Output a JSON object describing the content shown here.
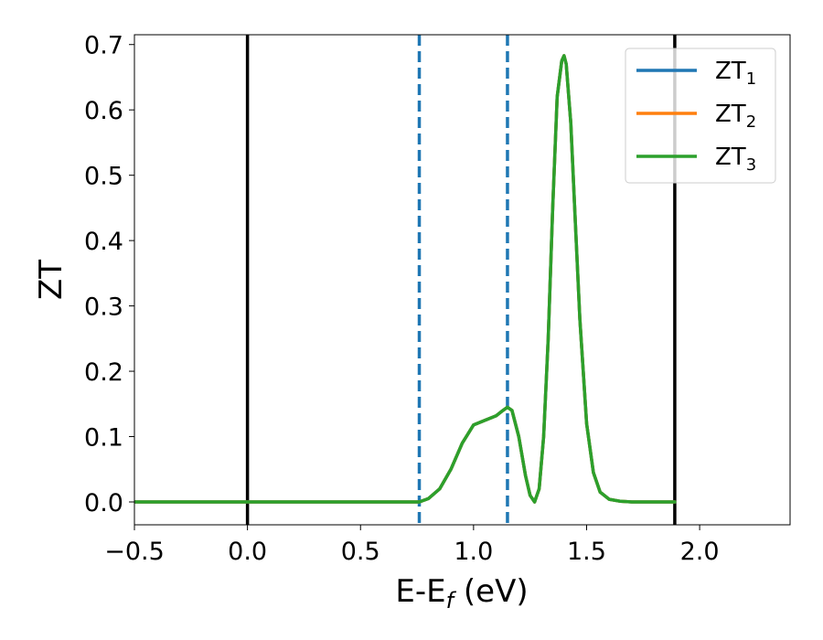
{
  "chart_data": {
    "type": "line",
    "xlabel": "E-E",
    "xlabel_sub": "f",
    "xlabel_unit": " (eV)",
    "ylabel": "ZT",
    "xlim": [
      -0.5,
      2.4
    ],
    "ylim": [
      -0.035,
      0.715
    ],
    "xticks": [
      -0.5,
      0.0,
      0.5,
      1.0,
      1.5,
      2.0
    ],
    "xtick_labels": [
      "−0.5",
      "0.0",
      "0.5",
      "1.0",
      "1.5",
      "2.0"
    ],
    "yticks": [
      0.0,
      0.1,
      0.2,
      0.3,
      0.4,
      0.5,
      0.6,
      0.7
    ],
    "ytick_labels": [
      "0.0",
      "0.1",
      "0.2",
      "0.3",
      "0.4",
      "0.5",
      "0.6",
      "0.7"
    ],
    "grid": false,
    "legend_position": "top-right",
    "vlines": [
      {
        "x": 0.0,
        "style": "solid",
        "color": "#000000"
      },
      {
        "x": 1.89,
        "style": "solid",
        "color": "#000000"
      },
      {
        "x": 0.76,
        "style": "dashed",
        "color": "#1f77b4"
      },
      {
        "x": 1.15,
        "style": "dashed",
        "color": "#1f77b4"
      }
    ],
    "x": [
      -0.5,
      0.7,
      0.76,
      0.8,
      0.85,
      0.9,
      0.95,
      1.0,
      1.05,
      1.1,
      1.13,
      1.15,
      1.17,
      1.2,
      1.23,
      1.25,
      1.27,
      1.29,
      1.31,
      1.33,
      1.35,
      1.37,
      1.39,
      1.4,
      1.41,
      1.43,
      1.45,
      1.47,
      1.5,
      1.53,
      1.56,
      1.6,
      1.65,
      1.7,
      1.75,
      1.89
    ],
    "series": [
      {
        "name": "ZT",
        "name_sub": "1",
        "color": "#1f77b4",
        "values": [
          0.0,
          0.0,
          0.0,
          0.005,
          0.02,
          0.05,
          0.09,
          0.118,
          0.125,
          0.132,
          0.14,
          0.145,
          0.14,
          0.1,
          0.04,
          0.01,
          0.0,
          0.02,
          0.1,
          0.25,
          0.45,
          0.62,
          0.675,
          0.683,
          0.67,
          0.58,
          0.43,
          0.28,
          0.12,
          0.045,
          0.015,
          0.004,
          0.001,
          0.0,
          0.0,
          0.0
        ]
      },
      {
        "name": "ZT",
        "name_sub": "2",
        "color": "#ff7f0e",
        "values": [
          0.0,
          0.0,
          0.0,
          0.005,
          0.02,
          0.05,
          0.09,
          0.118,
          0.125,
          0.132,
          0.14,
          0.145,
          0.14,
          0.1,
          0.04,
          0.01,
          0.0,
          0.02,
          0.1,
          0.25,
          0.45,
          0.62,
          0.675,
          0.683,
          0.67,
          0.58,
          0.43,
          0.28,
          0.12,
          0.045,
          0.015,
          0.004,
          0.001,
          0.0,
          0.0,
          0.0
        ]
      },
      {
        "name": "ZT",
        "name_sub": "3",
        "color": "#2ca02c",
        "values": [
          0.0,
          0.0,
          0.0,
          0.005,
          0.02,
          0.05,
          0.09,
          0.118,
          0.125,
          0.132,
          0.14,
          0.145,
          0.14,
          0.1,
          0.04,
          0.01,
          0.0,
          0.02,
          0.1,
          0.25,
          0.45,
          0.62,
          0.675,
          0.683,
          0.67,
          0.58,
          0.43,
          0.28,
          0.12,
          0.045,
          0.015,
          0.004,
          0.001,
          0.0,
          0.0,
          0.0
        ]
      }
    ]
  }
}
